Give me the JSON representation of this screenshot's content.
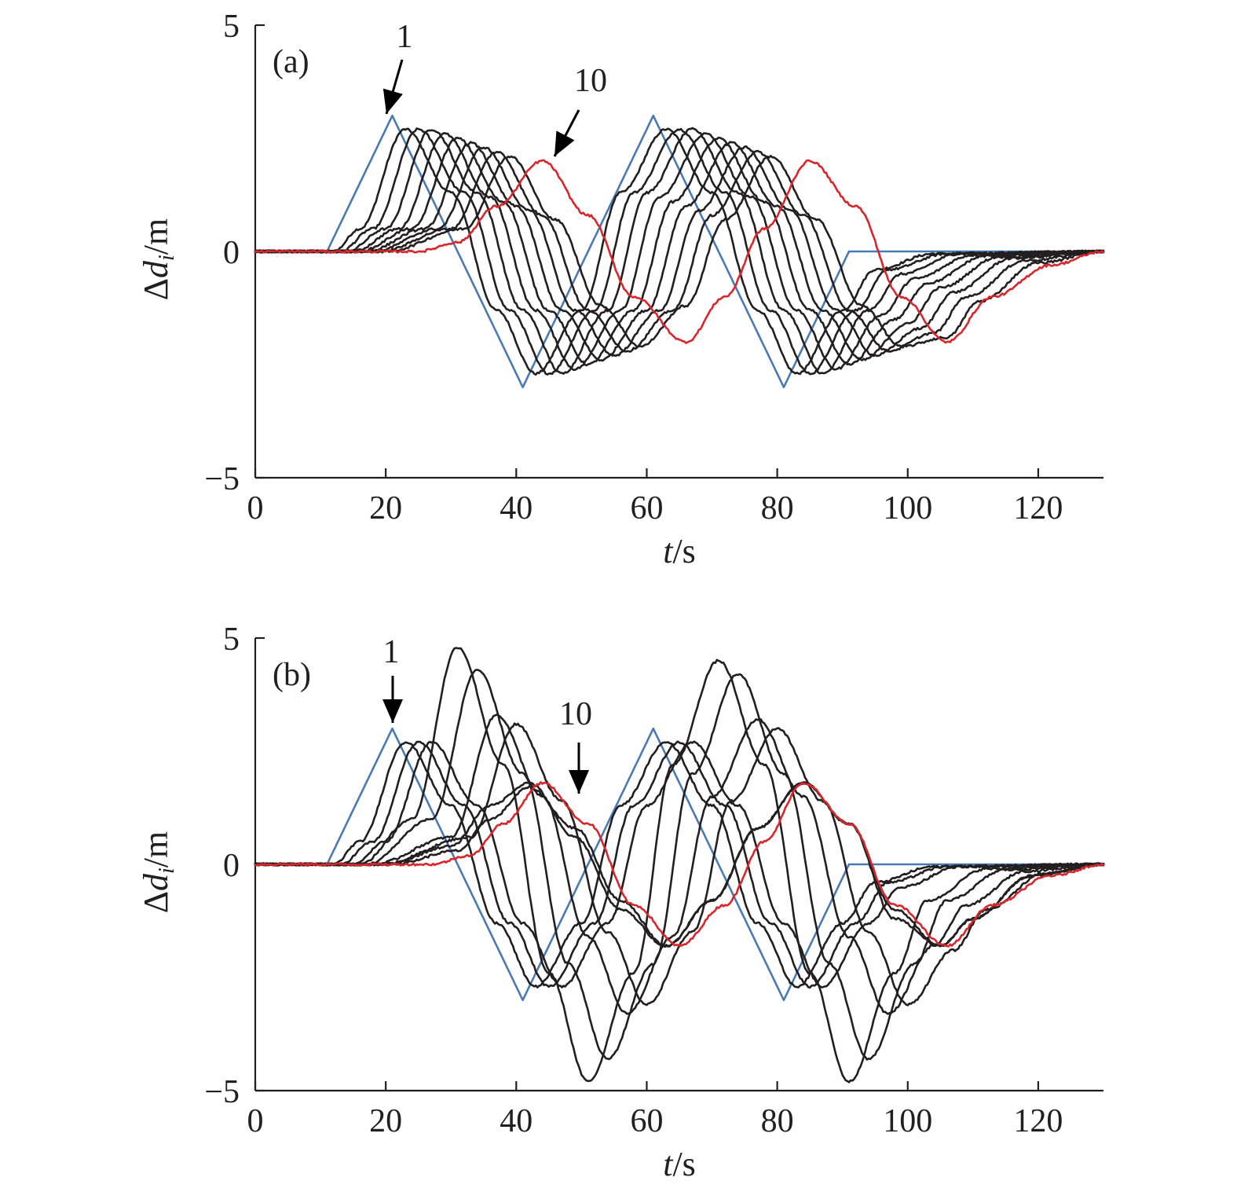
{
  "colors": {
    "leader": "#4a7ab5",
    "middle": "#231f20",
    "last": "#d9262c",
    "axis": "#231f20"
  },
  "chart_data": [
    {
      "type": "line",
      "panel_label": "(a)",
      "xlabel": "t/s",
      "ylabel": "Δd_i/m",
      "xlim": [
        0,
        130
      ],
      "ylim": [
        -5,
        5
      ],
      "xticks": [
        0,
        20,
        40,
        60,
        80,
        100,
        120
      ],
      "yticks": [
        -5,
        0,
        5
      ],
      "xtick_labels": [
        "0",
        "20",
        "40",
        "60",
        "80",
        "100",
        "120"
      ],
      "ytick_labels": [
        "−5",
        "0",
        "5"
      ],
      "grid": false,
      "annotations": [
        {
          "text": "1",
          "points_to": [
            20.5,
            3.0
          ]
        },
        {
          "text": "10",
          "points_to": [
            45,
            2.0
          ]
        }
      ],
      "series": [
        {
          "x": [
            0,
            11,
            21,
            41,
            61,
            81,
            91,
            100,
            130
          ],
          "values": [
            0,
            0,
            3.0,
            -3.0,
            3.0,
            -3.0,
            0,
            0,
            0
          ]
        },
        {
          "x": [
            0,
            12,
            16,
            23,
            30,
            37,
            43,
            50,
            56,
            63,
            70,
            77,
            83,
            90,
            95,
            104,
            130
          ],
          "values": [
            0,
            0,
            0.5,
            2.7,
            1.3,
            -1.3,
            -2.7,
            -1.3,
            1.3,
            2.7,
            1.3,
            -1.3,
            -2.7,
            -1.3,
            -0.4,
            -0.05,
            0
          ]
        },
        {
          "x": [
            0,
            13,
            18,
            25,
            32,
            39,
            45,
            52,
            58,
            65,
            72,
            79,
            85,
            92,
            97,
            106,
            130
          ],
          "values": [
            0,
            0,
            0.5,
            2.7,
            1.3,
            -1.3,
            -2.7,
            -1.3,
            1.3,
            2.7,
            1.3,
            -1.3,
            -2.7,
            -1.3,
            -0.4,
            -0.05,
            0
          ]
        },
        {
          "x": [
            0,
            14,
            20,
            27,
            34,
            41,
            47,
            54,
            60,
            67,
            74,
            81,
            87,
            94,
            99,
            108,
            130
          ],
          "values": [
            0,
            0,
            0.5,
            2.7,
            1.3,
            -1.3,
            -2.7,
            -1.3,
            1.3,
            2.7,
            1.3,
            -1.3,
            -2.7,
            -1.3,
            -0.5,
            -0.05,
            0
          ]
        },
        {
          "x": [
            0,
            15,
            22,
            29,
            36,
            43,
            49,
            56,
            62,
            69,
            76,
            83,
            89,
            96,
            101,
            110,
            130
          ],
          "values": [
            0,
            0,
            0.5,
            2.6,
            1.2,
            -1.3,
            -2.6,
            -1.3,
            1.2,
            2.6,
            1.2,
            -1.3,
            -2.6,
            -1.4,
            -0.6,
            -0.08,
            0
          ]
        },
        {
          "x": [
            0,
            16,
            24,
            31,
            38,
            45,
            51,
            58,
            64,
            71,
            78,
            85,
            91,
            98,
            103,
            112,
            130
          ],
          "values": [
            0,
            0,
            0.5,
            2.5,
            1.1,
            -1.3,
            -2.5,
            -1.3,
            1.1,
            2.5,
            1.1,
            -1.3,
            -2.5,
            -1.5,
            -0.7,
            -0.1,
            0
          ]
        },
        {
          "x": [
            0,
            17,
            26,
            33,
            40,
            47,
            53,
            60,
            66,
            73,
            80,
            87,
            93,
            100,
            105,
            114,
            130
          ],
          "values": [
            0,
            0,
            0.5,
            2.4,
            1.0,
            -1.3,
            -2.4,
            -1.3,
            1.0,
            2.4,
            1.0,
            -1.3,
            -2.4,
            -1.6,
            -0.8,
            -0.12,
            0
          ]
        },
        {
          "x": [
            0,
            18,
            28,
            35,
            42,
            49,
            55,
            62,
            68,
            75,
            82,
            89,
            95,
            102,
            107,
            116,
            130
          ],
          "values": [
            0,
            0,
            0.5,
            2.3,
            0.9,
            -1.3,
            -2.3,
            -1.3,
            0.9,
            2.3,
            0.9,
            -1.3,
            -2.3,
            -1.7,
            -0.9,
            -0.15,
            0
          ]
        },
        {
          "x": [
            0,
            19,
            30,
            37,
            44,
            51,
            57,
            64,
            70,
            77,
            84,
            91,
            97,
            104,
            109,
            118,
            130
          ],
          "values": [
            0,
            0,
            0.5,
            2.2,
            0.8,
            -1.3,
            -2.2,
            -1.3,
            0.8,
            2.2,
            0.8,
            -1.3,
            -2.2,
            -1.8,
            -1.0,
            -0.2,
            0
          ]
        },
        {
          "x": [
            0,
            20,
            32,
            39,
            46,
            53,
            59,
            66,
            72,
            79,
            86,
            93,
            99,
            106,
            111,
            120,
            130
          ],
          "values": [
            0,
            0,
            0.5,
            2.1,
            0.7,
            -1.2,
            -2.1,
            -1.2,
            0.7,
            2.1,
            0.7,
            -1.2,
            -2.1,
            -1.9,
            -1.1,
            -0.25,
            0
          ]
        },
        {
          "x": [
            0,
            25,
            31,
            37,
            44,
            51,
            58,
            66,
            72,
            78,
            85,
            92,
            99,
            106,
            113,
            122,
            130
          ],
          "values": [
            0,
            0,
            0.2,
            1.0,
            2.0,
            0.8,
            -1.0,
            -2.0,
            -1.0,
            0.5,
            2.0,
            1.0,
            -1.0,
            -2.0,
            -1.0,
            -0.3,
            0
          ]
        }
      ]
    },
    {
      "type": "line",
      "panel_label": "(b)",
      "xlabel": "t/s",
      "ylabel": "Δd_i/m",
      "xlim": [
        0,
        130
      ],
      "ylim": [
        -5,
        5
      ],
      "xticks": [
        0,
        20,
        40,
        60,
        80,
        100,
        120
      ],
      "yticks": [
        -5,
        0,
        5
      ],
      "xtick_labels": [
        "0",
        "20",
        "40",
        "60",
        "80",
        "100",
        "120"
      ],
      "ytick_labels": [
        "−5",
        "0",
        "5"
      ],
      "grid": false,
      "annotations": [
        {
          "text": "1",
          "points_to": [
            20.5,
            3.0
          ]
        },
        {
          "text": "10",
          "points_to": [
            49,
            1.8
          ]
        }
      ],
      "series": [
        {
          "x": [
            0,
            11,
            21,
            41,
            61,
            81,
            91,
            100,
            130
          ],
          "values": [
            0,
            0,
            3.0,
            -3.0,
            3.0,
            -3.0,
            0,
            0,
            0
          ]
        },
        {
          "x": [
            0,
            12,
            16,
            23,
            30,
            37,
            43,
            50,
            56,
            63,
            70,
            77,
            83,
            90,
            95,
            104,
            130
          ],
          "values": [
            0,
            0,
            0.5,
            2.7,
            1.3,
            -1.3,
            -2.7,
            -1.3,
            1.3,
            2.7,
            1.3,
            -1.3,
            -2.7,
            -1.3,
            -0.4,
            -0.05,
            0
          ]
        },
        {
          "x": [
            0,
            13,
            18,
            25,
            32,
            39,
            45,
            52,
            58,
            65,
            72,
            79,
            85,
            92,
            97,
            106,
            130
          ],
          "values": [
            0,
            0,
            0.5,
            2.7,
            1.3,
            -1.3,
            -2.7,
            -1.3,
            1.3,
            2.7,
            1.3,
            -1.3,
            -2.7,
            -1.3,
            -0.4,
            -0.05,
            0
          ]
        },
        {
          "x": [
            0,
            15,
            20,
            27,
            34,
            41,
            47,
            54,
            60,
            67,
            74,
            81,
            87,
            94,
            99,
            108,
            130
          ],
          "values": [
            0,
            0,
            0.5,
            2.7,
            1.3,
            -1.3,
            -2.7,
            -1.3,
            1.3,
            2.7,
            1.3,
            -1.3,
            -2.7,
            -1.3,
            -0.5,
            -0.05,
            0
          ]
        },
        {
          "x": [
            0,
            16,
            24,
            31,
            38,
            45,
            51,
            58,
            64,
            71,
            78,
            85,
            91,
            98,
            103,
            112,
            130
          ],
          "values": [
            0,
            0,
            1.0,
            4.8,
            2.2,
            -2.4,
            -4.8,
            -2.4,
            2.2,
            4.5,
            2.2,
            -2.4,
            -4.8,
            -2.4,
            -0.8,
            -0.1,
            0
          ]
        },
        {
          "x": [
            0,
            17,
            27,
            34,
            41,
            48,
            54,
            61,
            67,
            74,
            81,
            88,
            94,
            101,
            106,
            115,
            130
          ],
          "values": [
            0,
            0,
            1.0,
            4.3,
            2.0,
            -2.2,
            -4.3,
            -2.2,
            2.0,
            4.2,
            2.0,
            -2.2,
            -4.3,
            -2.2,
            -0.8,
            -0.12,
            0
          ]
        },
        {
          "x": [
            0,
            18,
            30,
            37,
            44,
            51,
            57,
            64,
            70,
            77,
            84,
            91,
            97,
            104,
            109,
            118,
            130
          ],
          "values": [
            0,
            0,
            0.6,
            3.3,
            1.5,
            -1.6,
            -3.3,
            -1.6,
            1.5,
            3.2,
            1.5,
            -1.6,
            -3.3,
            -1.8,
            -0.9,
            -0.15,
            0
          ]
        },
        {
          "x": [
            0,
            19,
            33,
            40,
            47,
            54,
            60,
            67,
            73,
            80,
            87,
            94,
            100,
            107,
            112,
            121,
            130
          ],
          "values": [
            0,
            0,
            0.6,
            3.1,
            1.4,
            -1.5,
            -3.1,
            -1.5,
            1.4,
            3.0,
            1.4,
            -1.5,
            -3.1,
            -1.9,
            -1.0,
            -0.2,
            0
          ]
        },
        {
          "x": [
            0,
            20,
            30,
            36,
            42,
            49,
            56,
            63,
            70,
            77,
            84,
            91,
            98,
            105,
            110,
            119,
            130
          ],
          "values": [
            0,
            0,
            0.4,
            1.3,
            1.8,
            0.6,
            -1.0,
            -1.8,
            -0.8,
            0.8,
            1.8,
            0.9,
            -1.2,
            -1.8,
            -1.2,
            -0.25,
            0
          ]
        },
        {
          "x": [
            0,
            21,
            31,
            36,
            42,
            49,
            56,
            63,
            70,
            77,
            84,
            91,
            98,
            105,
            110,
            119,
            130
          ],
          "values": [
            0,
            0,
            0.3,
            1.0,
            1.7,
            0.8,
            -0.8,
            -1.8,
            -0.8,
            0.8,
            1.8,
            0.9,
            -1.0,
            -1.8,
            -1.2,
            -0.25,
            0
          ]
        },
        {
          "x": [
            0,
            27,
            33,
            38,
            44,
            51,
            58,
            65,
            72,
            78,
            84,
            91,
            98,
            106,
            113,
            122,
            130
          ],
          "values": [
            0,
            0,
            0.2,
            0.9,
            1.8,
            0.9,
            -0.9,
            -1.8,
            -0.9,
            0.5,
            1.8,
            0.9,
            -0.9,
            -1.8,
            -0.9,
            -0.25,
            0
          ]
        }
      ]
    }
  ]
}
